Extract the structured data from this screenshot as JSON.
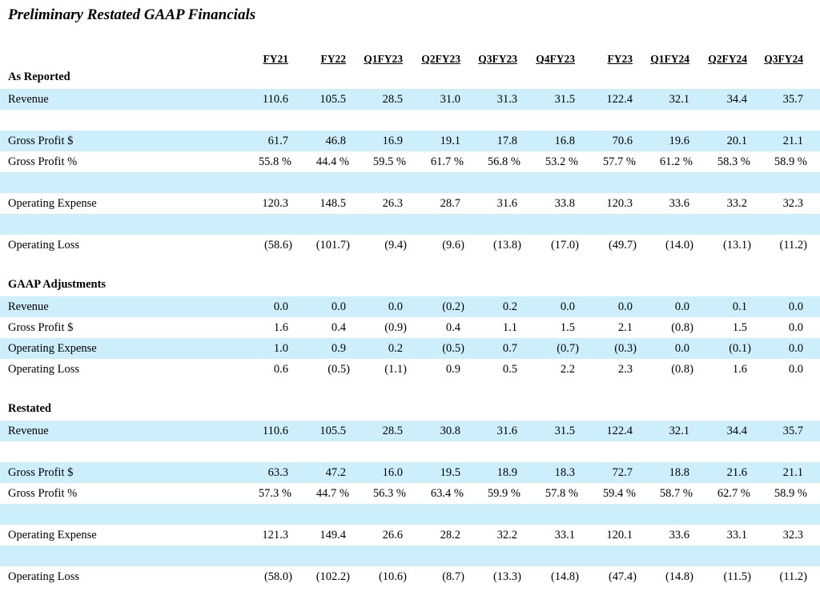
{
  "title": "Preliminary Restated GAAP Financials",
  "columns": [
    "FY21",
    "FY22",
    "Q1FY23",
    "Q2FY23",
    "Q3FY23",
    "Q4FY23",
    "FY23",
    "Q1FY24",
    "Q2FY24",
    "Q3FY24"
  ],
  "sections": {
    "as_reported": "As Reported",
    "gaap_adjustments": "GAAP Adjustments",
    "restated": "Restated"
  },
  "as_reported": {
    "revenue": {
      "label": "Revenue",
      "values": [
        "110.6",
        "105.5",
        "28.5",
        "31.0",
        "31.3",
        "31.5",
        "122.4",
        "32.1",
        "34.4",
        "35.7"
      ]
    },
    "gross_profit": {
      "label": "Gross Profit $",
      "values": [
        "61.7",
        "46.8",
        "16.9",
        "19.1",
        "17.8",
        "16.8",
        "70.6",
        "19.6",
        "20.1",
        "21.1"
      ]
    },
    "gross_profit_pct": {
      "label": "Gross Profit %",
      "values": [
        "55.8 %",
        "44.4 %",
        "59.5 %",
        "61.7 %",
        "56.8 %",
        "53.2 %",
        "57.7 %",
        "61.2 %",
        "58.3 %",
        "58.9 %"
      ]
    },
    "operating_expense": {
      "label": "Operating Expense",
      "values": [
        "120.3",
        "148.5",
        "26.3",
        "28.7",
        "31.6",
        "33.8",
        "120.3",
        "33.6",
        "33.2",
        "32.3"
      ]
    },
    "operating_loss": {
      "label": "Operating Loss",
      "values": [
        "(58.6)",
        "(101.7)",
        "(9.4)",
        "(9.6)",
        "(13.8)",
        "(17.0)",
        "(49.7)",
        "(14.0)",
        "(13.1)",
        "(11.2)"
      ]
    }
  },
  "gaap_adjustments": {
    "revenue": {
      "label": "Revenue",
      "values": [
        "0.0",
        "0.0",
        "0.0",
        "(0.2)",
        "0.2",
        "0.0",
        "0.0",
        "0.0",
        "0.1",
        "0.0"
      ]
    },
    "gross_profit": {
      "label": "Gross Profit $",
      "values": [
        "1.6",
        "0.4",
        "(0.9)",
        "0.4",
        "1.1",
        "1.5",
        "2.1",
        "(0.8)",
        "1.5",
        "0.0"
      ]
    },
    "operating_expense": {
      "label": "Operating Expense",
      "values": [
        "1.0",
        "0.9",
        "0.2",
        "(0.5)",
        "0.7",
        "(0.7)",
        "(0.3)",
        "0.0",
        "(0.1)",
        "0.0"
      ]
    },
    "operating_loss": {
      "label": "Operating Loss",
      "values": [
        "0.6",
        "(0.5)",
        "(1.1)",
        "0.9",
        "0.5",
        "2.2",
        "2.3",
        "(0.8)",
        "1.6",
        "0.0"
      ]
    }
  },
  "restated": {
    "revenue": {
      "label": "Revenue",
      "values": [
        "110.6",
        "105.5",
        "28.5",
        "30.8",
        "31.6",
        "31.5",
        "122.4",
        "32.1",
        "34.4",
        "35.7"
      ]
    },
    "gross_profit": {
      "label": "Gross Profit $",
      "values": [
        "63.3",
        "47.2",
        "16.0",
        "19.5",
        "18.9",
        "18.3",
        "72.7",
        "18.8",
        "21.6",
        "21.1"
      ]
    },
    "gross_profit_pct": {
      "label": "Gross Profit %",
      "values": [
        "57.3 %",
        "44.7 %",
        "56.3 %",
        "63.4 %",
        "59.9 %",
        "57.8 %",
        "59.4 %",
        "58.7 %",
        "62.7 %",
        "58.9 %"
      ]
    },
    "operating_expense": {
      "label": "Operating Expense",
      "values": [
        "121.3",
        "149.4",
        "26.6",
        "28.2",
        "32.2",
        "33.1",
        "120.1",
        "33.6",
        "33.1",
        "32.3"
      ]
    },
    "operating_loss": {
      "label": "Operating Loss",
      "values": [
        "(58.0)",
        "(102.2)",
        "(10.6)",
        "(8.7)",
        "(13.3)",
        "(14.8)",
        "(47.4)",
        "(14.8)",
        "(11.5)",
        "(11.2)"
      ]
    }
  },
  "colors": {
    "shade": "#cdeefb"
  }
}
